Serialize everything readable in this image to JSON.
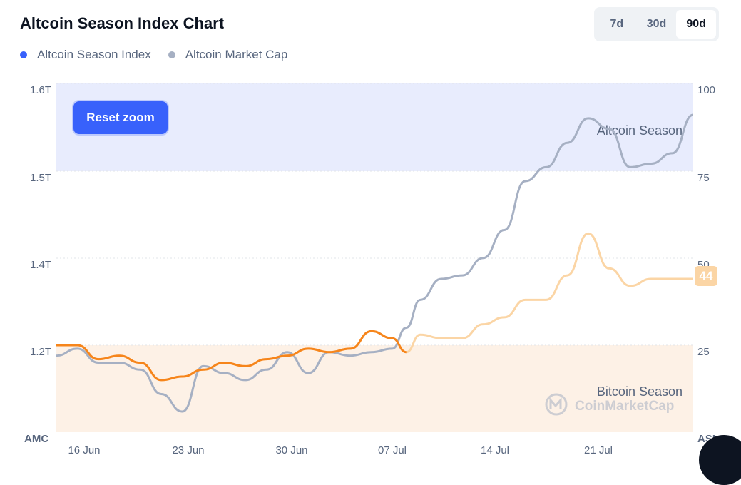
{
  "title": "Altcoin Season Index Chart",
  "legend": [
    {
      "label": "Altcoin Season Index",
      "color": "#3861fb"
    },
    {
      "label": "Altcoin Market Cap",
      "color": "#a6b0c3"
    }
  ],
  "tabs": [
    {
      "label": "7d",
      "active": false
    },
    {
      "label": "30d",
      "active": false
    },
    {
      "label": "90d",
      "active": true
    }
  ],
  "reset_zoom_label": "Reset zoom",
  "current_value_badge": "44",
  "watermark": "CoinMarketCap",
  "chart_data": {
    "type": "line",
    "left_axis": {
      "title": "AMC",
      "ticks": [
        "1.6T",
        "1.5T",
        "1.4T",
        "1.2T"
      ]
    },
    "right_axis": {
      "title": "ASI",
      "ticks": [
        "100",
        "75",
        "50",
        "25"
      ],
      "ylim": [
        0,
        100
      ]
    },
    "x_ticks": [
      "16 Jun",
      "23 Jun",
      "30 Jun",
      "07 Jul",
      "14 Jul",
      "21 Jul"
    ],
    "bands": [
      {
        "label": "Altcoin Season",
        "from": 75,
        "to": 100,
        "color": "#e8ecfd"
      },
      {
        "label": "Bitcoin Season",
        "from": 0,
        "to": 25,
        "color": "#fdf1e6"
      }
    ],
    "x_domain": [
      0,
      91
    ],
    "series": [
      {
        "name": "Altcoin Market Cap",
        "axis": "right",
        "color": "#a6b0c3",
        "x": [
          0,
          3,
          6,
          9,
          12,
          15,
          18,
          21,
          24,
          27,
          30,
          33,
          36,
          39,
          42,
          45,
          48,
          50,
          52,
          55,
          58,
          61,
          64,
          67,
          70,
          73,
          76,
          79,
          82,
          85,
          88,
          91
        ],
        "y": [
          22,
          24,
          20,
          20,
          18,
          11,
          6,
          19,
          17,
          15,
          18,
          23,
          17,
          23,
          22,
          23,
          24,
          30,
          38,
          44,
          45,
          50,
          58,
          72,
          76,
          83,
          90,
          87,
          76,
          77,
          80,
          91
        ]
      },
      {
        "name": "Altcoin Season Index",
        "axis": "right",
        "color": "#f6851b",
        "x": [
          0,
          3,
          6,
          9,
          12,
          15,
          18,
          21,
          24,
          27,
          30,
          33,
          36,
          39,
          42,
          45,
          48,
          50,
          52,
          55,
          58,
          61,
          64,
          67,
          70,
          73,
          76,
          79,
          82,
          85,
          88,
          91
        ],
        "y": [
          25,
          25,
          21,
          22,
          20,
          15,
          16,
          18,
          20,
          19,
          21,
          22,
          24,
          23,
          24,
          29,
          27,
          23,
          28,
          27,
          27,
          31,
          33,
          38,
          38,
          45,
          57,
          47,
          42,
          44,
          44,
          44
        ]
      }
    ],
    "current_asi": 44,
    "grid": true
  }
}
